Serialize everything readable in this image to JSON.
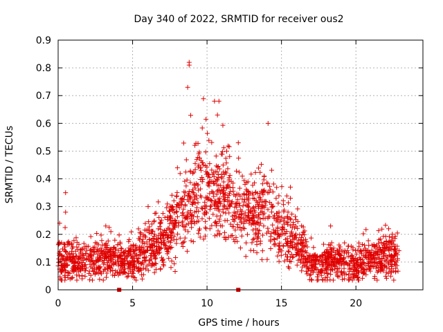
{
  "chart_data": {
    "type": "scatter",
    "title": "Day 340 of 2022, SRMTID for receiver ous2",
    "xlabel": "GPS time / hours",
    "ylabel": "SRMTID / TECUs",
    "xlim": [
      0,
      24.5
    ],
    "ylim": [
      0,
      0.9
    ],
    "xticks": [
      0,
      5,
      10,
      15,
      20
    ],
    "yticks": [
      0,
      0.1,
      0.2,
      0.3,
      0.4,
      0.5,
      0.6,
      0.7,
      0.8,
      0.9
    ],
    "xtick_labels": [
      "0",
      "5",
      "10",
      "15",
      "20"
    ],
    "ytick_labels": [
      "0",
      "0.1",
      "0.2",
      "0.3",
      "0.4",
      "0.5",
      "0.6",
      "0.7",
      "0.8",
      "0.9"
    ],
    "grid": true,
    "marker": "+",
    "color": "#e00000",
    "profile": {
      "description": "approximate baseline of dense point cloud (x in hours, y in TECU)",
      "x": [
        0,
        1,
        2,
        3,
        4,
        5,
        6,
        7,
        8,
        9,
        10,
        11,
        12,
        13,
        14,
        15,
        16,
        17,
        18,
        19,
        20,
        21,
        22,
        23
      ],
      "y": [
        0.11,
        0.1,
        0.1,
        0.12,
        0.11,
        0.1,
        0.14,
        0.18,
        0.24,
        0.34,
        0.38,
        0.36,
        0.28,
        0.25,
        0.3,
        0.2,
        0.19,
        0.08,
        0.1,
        0.1,
        0.09,
        0.11,
        0.12,
        0.12
      ]
    },
    "markers_on_xaxis": [
      4.1,
      12.1
    ],
    "notable_points": [
      {
        "x": 8.8,
        "y": 0.82
      },
      {
        "x": 8.8,
        "y": 0.81
      },
      {
        "x": 8.7,
        "y": 0.73
      },
      {
        "x": 10.5,
        "y": 0.68
      },
      {
        "x": 10.8,
        "y": 0.68
      },
      {
        "x": 10.7,
        "y": 0.63
      },
      {
        "x": 14.1,
        "y": 0.6
      },
      {
        "x": 12.1,
        "y": 0.53
      },
      {
        "x": 0.5,
        "y": 0.35
      },
      {
        "x": 0.5,
        "y": 0.28
      },
      {
        "x": 15.6,
        "y": 0.37
      },
      {
        "x": 15.6,
        "y": 0.33
      },
      {
        "x": 3.2,
        "y": 0.23
      },
      {
        "x": 18.3,
        "y": 0.23
      },
      {
        "x": 22.2,
        "y": 0.22
      },
      {
        "x": 0.1,
        "y": 0.24
      }
    ]
  }
}
